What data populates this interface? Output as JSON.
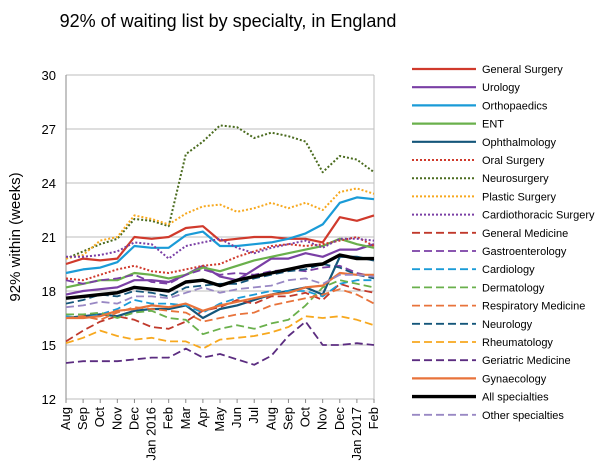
{
  "chart_data": {
    "type": "line",
    "title": "92% of waiting list by specialty, in England",
    "ylabel": "92% within (weeks)",
    "xlabel": "",
    "ylim": [
      12,
      30
    ],
    "yticks": [
      12,
      15,
      18,
      21,
      24,
      27,
      30
    ],
    "grid": true,
    "legend_position": "right",
    "x": [
      "Aug",
      "Sep",
      "Oct",
      "Nov",
      "Dec",
      "Jan 2016",
      "Feb",
      "Mar",
      "Apr",
      "May",
      "Jun",
      "Jul",
      "Aug",
      "Sep",
      "Oct",
      "Nov",
      "Dec",
      "Jan 2017",
      "Feb"
    ],
    "series": [
      {
        "name": "General Surgery",
        "color": "#d03a2c",
        "dash": "solid",
        "width": 2.2,
        "values": [
          19.5,
          19.8,
          19.7,
          19.8,
          21.0,
          20.9,
          21.0,
          21.5,
          21.6,
          20.8,
          20.9,
          21.0,
          21.0,
          20.9,
          20.9,
          20.7,
          22.1,
          21.9,
          22.2
        ]
      },
      {
        "name": "Urology",
        "color": "#7a3fa5",
        "dash": "solid",
        "width": 2.2,
        "values": [
          17.8,
          18.0,
          18.1,
          18.2,
          18.6,
          18.6,
          18.5,
          18.9,
          19.4,
          18.8,
          18.6,
          19.2,
          19.8,
          19.8,
          20.1,
          19.9,
          20.3,
          20.3,
          20.6
        ]
      },
      {
        "name": "Orthopaedics",
        "color": "#1a9bd7",
        "dash": "solid",
        "width": 2.2,
        "values": [
          19.0,
          19.2,
          19.3,
          19.6,
          20.5,
          20.4,
          20.4,
          21.1,
          21.3,
          20.5,
          20.5,
          20.6,
          20.7,
          20.9,
          21.2,
          21.7,
          22.9,
          23.2,
          23.1
        ]
      },
      {
        "name": "ENT",
        "color": "#6ab04c",
        "dash": "solid",
        "width": 2.2,
        "values": [
          18.2,
          18.4,
          18.6,
          18.6,
          19.0,
          18.9,
          18.7,
          18.9,
          19.3,
          19.1,
          19.4,
          19.7,
          19.9,
          20.1,
          20.3,
          20.5,
          20.9,
          20.6,
          20.4
        ]
      },
      {
        "name": "Ophthalmology",
        "color": "#14567a",
        "dash": "solid",
        "width": 2.2,
        "values": [
          16.5,
          16.6,
          16.7,
          16.6,
          16.9,
          17.0,
          17.0,
          17.2,
          16.5,
          17.0,
          17.2,
          17.5,
          17.8,
          18.0,
          18.2,
          17.8,
          19.9,
          19.9,
          19.7
        ]
      },
      {
        "name": "Oral Surgery",
        "color": "#d03a2c",
        "dash": "2,2",
        "width": 2,
        "values": [
          18.7,
          18.6,
          18.9,
          19.2,
          19.4,
          19.1,
          19.0,
          19.2,
          19.4,
          19.5,
          19.9,
          20.2,
          20.5,
          20.6,
          20.5,
          20.6,
          20.8,
          21.0,
          20.5
        ]
      },
      {
        "name": "Neurosurgery",
        "color": "#4a6b1e",
        "dash": "2,2",
        "width": 2,
        "values": [
          19.8,
          20.2,
          20.6,
          20.9,
          22.0,
          21.9,
          21.6,
          25.6,
          26.3,
          27.2,
          27.1,
          26.5,
          26.8,
          26.6,
          26.3,
          24.6,
          25.5,
          25.3,
          24.6
        ]
      },
      {
        "name": "Plastic Surgery",
        "color": "#f7a81e",
        "dash": "2,2",
        "width": 2,
        "values": [
          19.8,
          20.0,
          20.8,
          21.0,
          22.2,
          22.0,
          21.7,
          22.3,
          22.7,
          22.8,
          22.4,
          22.6,
          22.9,
          22.6,
          22.9,
          22.5,
          23.5,
          23.7,
          23.4
        ]
      },
      {
        "name": "Cardiothoracic Surgery",
        "color": "#7a3fa5",
        "dash": "2,2",
        "width": 2,
        "values": [
          19.9,
          19.9,
          20.0,
          20.2,
          20.7,
          20.6,
          19.8,
          20.5,
          20.7,
          20.9,
          20.4,
          20.1,
          20.4,
          20.6,
          20.8,
          20.4,
          20.9,
          20.9,
          20.8
        ]
      },
      {
        "name": "General Medicine",
        "color": "#c0392b",
        "dash": "8,4",
        "width": 1.8,
        "values": [
          15.2,
          15.8,
          16.3,
          16.6,
          16.4,
          16.0,
          15.9,
          16.3,
          16.9,
          17.1,
          17.5,
          17.3,
          17.7,
          17.7,
          17.9,
          17.5,
          18.4,
          18.1,
          17.9
        ]
      },
      {
        "name": "Gastroenterology",
        "color": "#7a3fa5",
        "dash": "8,4",
        "width": 1.8,
        "values": [
          18.6,
          18.4,
          18.6,
          18.7,
          18.9,
          18.5,
          18.4,
          18.9,
          19.2,
          18.9,
          19.0,
          18.9,
          19.1,
          19.2,
          19.1,
          19.3,
          19.4,
          19.0,
          18.8
        ]
      },
      {
        "name": "Cardiology",
        "color": "#1a9bd7",
        "dash": "8,4",
        "width": 1.8,
        "values": [
          16.6,
          16.5,
          16.7,
          17.0,
          17.5,
          17.3,
          17.3,
          17.2,
          16.8,
          17.3,
          17.6,
          17.8,
          18.0,
          18.0,
          18.0,
          17.7,
          18.4,
          18.6,
          18.6
        ]
      },
      {
        "name": "Dermatology",
        "color": "#6ab04c",
        "dash": "8,4",
        "width": 1.8,
        "values": [
          16.7,
          16.7,
          16.8,
          16.5,
          16.8,
          16.9,
          16.5,
          16.4,
          15.6,
          15.9,
          16.1,
          15.9,
          16.2,
          16.4,
          17.2,
          18.2,
          18.6,
          18.4,
          18.2
        ]
      },
      {
        "name": "Respiratory Medicine",
        "color": "#e8733b",
        "dash": "8,4",
        "width": 1.8,
        "values": [
          16.5,
          16.6,
          16.4,
          16.8,
          17.1,
          17.0,
          16.9,
          16.8,
          16.3,
          16.5,
          16.7,
          16.8,
          17.2,
          17.4,
          17.6,
          17.8,
          18.1,
          17.8,
          17.3
        ]
      },
      {
        "name": "Neurology",
        "color": "#14567a",
        "dash": "8,4",
        "width": 1.8,
        "values": [
          17.3,
          17.5,
          17.8,
          17.7,
          18.0,
          17.9,
          17.7,
          18.2,
          18.3,
          18.4,
          18.4,
          18.7,
          18.9,
          19.1,
          19.2,
          19.5,
          19.3,
          18.9,
          18.7
        ]
      },
      {
        "name": "Rheumatology",
        "color": "#f7a81e",
        "dash": "8,4",
        "width": 1.8,
        "values": [
          15.1,
          15.4,
          15.8,
          15.5,
          15.3,
          15.4,
          15.2,
          15.2,
          14.8,
          15.3,
          15.4,
          15.5,
          15.7,
          16.0,
          16.6,
          16.5,
          16.6,
          16.4,
          16.1
        ]
      },
      {
        "name": "Geriatric Medicine",
        "color": "#5b2c80",
        "dash": "8,4",
        "width": 1.8,
        "values": [
          14.0,
          14.1,
          14.1,
          14.1,
          14.2,
          14.3,
          14.3,
          14.8,
          14.3,
          14.5,
          14.2,
          13.9,
          14.4,
          15.5,
          16.3,
          15.0,
          15.0,
          15.1,
          15.0
        ]
      },
      {
        "name": "Gynaecology",
        "color": "#e8733b",
        "dash": "solid",
        "width": 2.2,
        "values": [
          16.5,
          16.5,
          16.6,
          16.9,
          17.0,
          17.2,
          17.1,
          17.3,
          16.9,
          17.2,
          17.4,
          17.6,
          17.8,
          17.9,
          18.2,
          18.3,
          19.0,
          18.9,
          18.9
        ]
      },
      {
        "name": "All specialties",
        "color": "#000000",
        "dash": "solid",
        "width": 3.4,
        "values": [
          17.6,
          17.7,
          17.8,
          17.9,
          18.2,
          18.1,
          18.0,
          18.5,
          18.6,
          18.3,
          18.6,
          18.8,
          19.0,
          19.2,
          19.4,
          19.5,
          20.0,
          19.8,
          19.8
        ]
      },
      {
        "name": "Other specialties",
        "color": "#9988c4",
        "dash": "8,4",
        "width": 1.8,
        "values": [
          17.1,
          17.2,
          17.4,
          17.3,
          17.7,
          17.7,
          17.6,
          17.9,
          18.2,
          17.9,
          18.1,
          18.2,
          18.3,
          18.6,
          18.7,
          18.4,
          18.9,
          18.9,
          18.8
        ]
      }
    ]
  }
}
